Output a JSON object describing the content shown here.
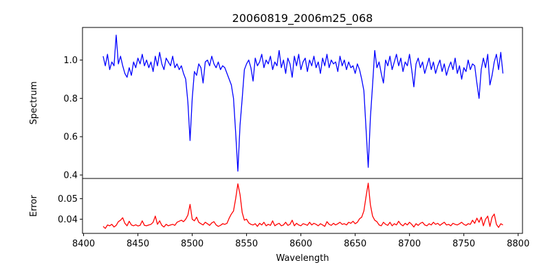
{
  "chart_data": [
    {
      "type": "line",
      "title": "20060819_2006m25_068",
      "xlabel": "",
      "ylabel": "Spectrum",
      "xlim": [
        8399,
        8804
      ],
      "ylim": [
        0.382,
        1.17
      ],
      "yticks": [
        0.4,
        0.6,
        0.8,
        1.0
      ],
      "ytick_labels": [
        "0.4",
        "0.6",
        "0.8",
        "1.0"
      ],
      "grid": false,
      "series": [
        {
          "name": "Spectrum",
          "color": "#0000ff",
          "x_start": 8418,
          "x_step": 2,
          "values": [
            1.02,
            0.97,
            1.03,
            0.95,
            0.99,
            0.97,
            1.13,
            0.98,
            1.02,
            0.97,
            0.93,
            0.91,
            0.96,
            0.92,
            0.99,
            0.96,
            1.01,
            0.98,
            1.03,
            0.97,
            1.0,
            0.96,
            0.99,
            0.94,
            1.02,
            0.97,
            1.04,
            0.98,
            0.95,
            1.01,
            0.99,
            0.97,
            1.02,
            0.96,
            0.98,
            0.95,
            0.97,
            0.93,
            0.9,
            0.78,
            0.58,
            0.8,
            0.94,
            0.92,
            0.98,
            0.96,
            0.88,
            0.99,
            1.0,
            0.97,
            1.02,
            0.98,
            0.96,
            0.99,
            0.95,
            0.97,
            0.96,
            0.93,
            0.9,
            0.87,
            0.8,
            0.62,
            0.42,
            0.66,
            0.8,
            0.95,
            0.98,
            1.0,
            0.96,
            0.89,
            1.01,
            0.97,
            0.99,
            1.03,
            0.96,
            1.0,
            0.98,
            1.02,
            0.95,
            0.99,
            0.97,
            1.05,
            0.96,
            1.0,
            0.93,
            1.01,
            0.98,
            0.91,
            1.02,
            0.97,
            1.03,
            0.95,
            0.99,
            1.01,
            0.94,
            1.0,
            0.97,
            1.02,
            0.96,
            0.99,
            0.93,
            1.01,
            0.97,
            1.03,
            0.96,
            1.0,
            0.98,
            0.99,
            0.94,
            1.02,
            0.97,
            1.0,
            0.95,
            0.99,
            0.96,
            0.97,
            0.93,
            0.98,
            0.95,
            0.9,
            0.84,
            0.64,
            0.44,
            0.7,
            0.87,
            1.05,
            0.96,
            0.99,
            0.93,
            0.88,
            1.0,
            0.97,
            1.02,
            0.95,
            0.99,
            1.03,
            0.97,
            1.01,
            0.94,
            0.99,
            0.97,
            1.03,
            0.95,
            0.86,
            0.98,
            1.01,
            0.96,
            0.99,
            0.93,
            0.97,
            1.01,
            0.95,
            0.99,
            0.93,
            0.97,
            1.0,
            0.94,
            0.98,
            0.92,
            0.96,
            0.99,
            0.95,
            1.01,
            0.93,
            0.97,
            0.9,
            0.96,
            0.94,
            1.0,
            0.95,
            0.98,
            0.97,
            0.88,
            0.8,
            0.95,
            1.01,
            0.96,
            1.03,
            0.87,
            0.92,
            0.99,
            1.03,
            0.95,
            1.04,
            0.93
          ]
        }
      ]
    },
    {
      "type": "line",
      "title": "",
      "xlabel": "Wavelength",
      "ylabel": "Error",
      "xlim": [
        8399,
        8804
      ],
      "ylim": [
        0.0331,
        0.0598
      ],
      "xticks": [
        8400,
        8450,
        8500,
        8550,
        8600,
        8650,
        8700,
        8750,
        8800
      ],
      "xtick_labels": [
        "8400",
        "8450",
        "8500",
        "8550",
        "8600",
        "8650",
        "8700",
        "8750",
        "8800"
      ],
      "yticks": [
        0.04,
        0.05
      ],
      "ytick_labels": [
        "0.04",
        "0.05"
      ],
      "grid": false,
      "series": [
        {
          "name": "Error",
          "color": "#ff0000",
          "x_start": 8418,
          "x_step": 2,
          "values": [
            0.0365,
            0.0355,
            0.0372,
            0.0368,
            0.0375,
            0.0362,
            0.037,
            0.0388,
            0.0395,
            0.0407,
            0.038,
            0.0368,
            0.039,
            0.0372,
            0.0368,
            0.0373,
            0.0367,
            0.037,
            0.0392,
            0.037,
            0.0368,
            0.0372,
            0.0375,
            0.0385,
            0.0415,
            0.0375,
            0.0392,
            0.037,
            0.0362,
            0.0375,
            0.0368,
            0.0372,
            0.0375,
            0.037,
            0.0385,
            0.039,
            0.0395,
            0.0388,
            0.04,
            0.042,
            0.0472,
            0.04,
            0.0392,
            0.041,
            0.0385,
            0.0378,
            0.0372,
            0.0385,
            0.0378,
            0.037,
            0.0382,
            0.0388,
            0.0372,
            0.0365,
            0.037,
            0.0378,
            0.0375,
            0.038,
            0.0405,
            0.0425,
            0.044,
            0.05,
            0.0572,
            0.052,
            0.0432,
            0.0395,
            0.04,
            0.0382,
            0.0375,
            0.0372,
            0.0378,
            0.0365,
            0.038,
            0.0372,
            0.0385,
            0.0368,
            0.0375,
            0.037,
            0.0392,
            0.0368,
            0.0375,
            0.038,
            0.0368,
            0.0372,
            0.0385,
            0.037,
            0.0375,
            0.0395,
            0.0368,
            0.038,
            0.0372,
            0.0368,
            0.0378,
            0.0375,
            0.037,
            0.0385,
            0.0372,
            0.038,
            0.0375,
            0.0368,
            0.0378,
            0.0372,
            0.0365,
            0.0388,
            0.0375,
            0.037,
            0.038,
            0.0372,
            0.0378,
            0.0385,
            0.0375,
            0.0378,
            0.0372,
            0.0385,
            0.038,
            0.039,
            0.0378,
            0.0385,
            0.0402,
            0.041,
            0.044,
            0.051,
            0.0575,
            0.047,
            0.0415,
            0.0395,
            0.0388,
            0.0372,
            0.0368,
            0.0385,
            0.0375,
            0.037,
            0.0385,
            0.0368,
            0.0378,
            0.0372,
            0.039,
            0.0375,
            0.0368,
            0.038,
            0.0372,
            0.0385,
            0.0375,
            0.0362,
            0.0378,
            0.037,
            0.038,
            0.0385,
            0.0372,
            0.0368,
            0.0378,
            0.0372,
            0.0385,
            0.0375,
            0.038,
            0.037,
            0.0378,
            0.0385,
            0.0372,
            0.0375,
            0.0368,
            0.038,
            0.0375,
            0.0372,
            0.0378,
            0.0385,
            0.0375,
            0.037,
            0.0378,
            0.0375,
            0.0395,
            0.038,
            0.0405,
            0.0385,
            0.041,
            0.0368,
            0.04,
            0.0415,
            0.0365,
            0.041,
            0.0425,
            0.0375,
            0.036,
            0.0378,
            0.0372
          ]
        }
      ]
    }
  ]
}
